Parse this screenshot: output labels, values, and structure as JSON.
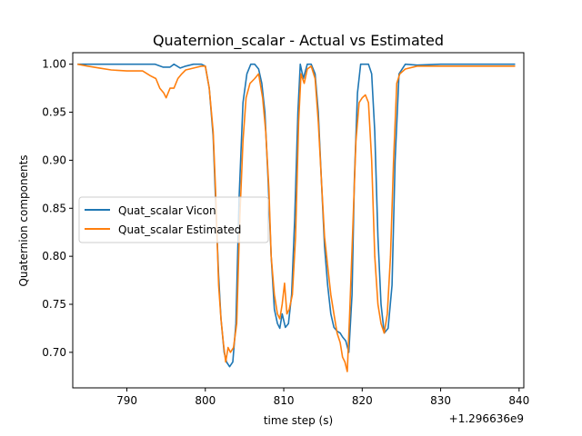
{
  "chart_data": {
    "type": "line",
    "title": "Quaternion_scalar - Actual vs Estimated",
    "xlabel": "time step (s)",
    "ylabel": "Quaternion components",
    "x_offset_label": "+1.296636e9",
    "xlim": [
      783.1,
      840.6
    ],
    "ylim": [
      0.663,
      1.012
    ],
    "x_ticks": [
      "790",
      "800",
      "810",
      "820",
      "830",
      "840"
    ],
    "x_tick_values": [
      790,
      800,
      810,
      820,
      830,
      840
    ],
    "y_ticks": [
      "0.70",
      "0.75",
      "0.80",
      "0.85",
      "0.90",
      "0.95",
      "1.00"
    ],
    "y_tick_values": [
      0.7,
      0.75,
      0.8,
      0.85,
      0.9,
      0.95,
      1.0
    ],
    "legend_position": "center-left",
    "grid": false,
    "series": [
      {
        "name": "Quat_scalar Vicon",
        "color": "#1f77b4",
        "x": [
          783.7,
          790.0,
          792.0,
          793.6,
          794.6,
          795.5,
          796.0,
          796.8,
          797.5,
          798.5,
          799.5,
          800.0,
          800.5,
          801.0,
          801.3,
          801.7,
          802.0,
          802.4,
          802.7,
          803.1,
          803.5,
          803.9,
          804.3,
          804.8,
          805.3,
          805.8,
          806.3,
          806.8,
          807.2,
          807.6,
          808.0,
          808.4,
          808.8,
          809.2,
          809.5,
          809.8,
          810.2,
          810.6,
          811.0,
          811.4,
          811.8,
          812.1,
          812.5,
          813.0,
          813.5,
          814.0,
          814.4,
          814.8,
          815.2,
          815.6,
          816.0,
          816.4,
          816.8,
          817.2,
          817.5,
          817.9,
          818.3,
          818.7,
          819.0,
          819.4,
          819.8,
          820.3,
          820.8,
          821.2,
          821.6,
          822.0,
          822.4,
          822.8,
          823.3,
          823.8,
          824.2,
          824.7,
          825.5,
          827.0,
          830.0,
          835.0,
          839.5
        ],
        "y": [
          1.0,
          1.0,
          1.0,
          1.0,
          0.997,
          0.997,
          1.0,
          0.996,
          0.998,
          1.0,
          1.0,
          0.998,
          0.975,
          0.925,
          0.86,
          0.78,
          0.735,
          0.7,
          0.69,
          0.685,
          0.69,
          0.73,
          0.86,
          0.96,
          0.99,
          1.0,
          1.0,
          0.995,
          0.98,
          0.95,
          0.88,
          0.8,
          0.745,
          0.73,
          0.725,
          0.74,
          0.726,
          0.73,
          0.76,
          0.84,
          0.95,
          1.0,
          0.985,
          1.0,
          1.0,
          0.99,
          0.95,
          0.88,
          0.81,
          0.77,
          0.74,
          0.726,
          0.722,
          0.72,
          0.716,
          0.712,
          0.7,
          0.76,
          0.88,
          0.97,
          1.0,
          1.0,
          1.0,
          0.99,
          0.93,
          0.82,
          0.75,
          0.72,
          0.725,
          0.77,
          0.9,
          0.99,
          1.0,
          0.999,
          1.0,
          1.0,
          1.0
        ]
      },
      {
        "name": "Quat_scalar Estimated",
        "color": "#ff7f0e",
        "x": [
          783.7,
          785.0,
          786.5,
          788.0,
          790.0,
          792.0,
          793.0,
          793.7,
          794.2,
          794.7,
          795.0,
          795.5,
          796.0,
          796.5,
          797.0,
          797.5,
          798.0,
          799.0,
          799.5,
          800.0,
          800.5,
          801.0,
          801.3,
          801.7,
          802.0,
          802.3,
          802.6,
          802.9,
          803.2,
          803.6,
          804.0,
          804.4,
          804.8,
          805.2,
          805.7,
          806.3,
          806.8,
          807.3,
          807.7,
          808.1,
          808.4,
          808.8,
          809.2,
          809.5,
          809.8,
          810.1,
          810.4,
          810.7,
          811.1,
          811.5,
          811.9,
          812.2,
          812.6,
          813.0,
          813.5,
          814.0,
          814.4,
          814.8,
          815.2,
          815.6,
          816.0,
          816.4,
          816.8,
          817.2,
          817.5,
          817.8,
          818.1,
          818.4,
          818.8,
          819.2,
          819.6,
          820.0,
          820.4,
          820.8,
          821.2,
          821.6,
          822.0,
          822.4,
          822.8,
          823.2,
          823.6,
          824.0,
          824.4,
          824.8,
          825.5,
          827.0,
          830.0,
          835.0,
          839.5
        ],
        "y": [
          1.0,
          0.998,
          0.996,
          0.994,
          0.993,
          0.993,
          0.988,
          0.985,
          0.975,
          0.97,
          0.965,
          0.975,
          0.975,
          0.985,
          0.99,
          0.994,
          0.995,
          0.997,
          0.998,
          0.998,
          0.975,
          0.93,
          0.87,
          0.77,
          0.735,
          0.71,
          0.69,
          0.705,
          0.7,
          0.705,
          0.73,
          0.84,
          0.92,
          0.965,
          0.98,
          0.985,
          0.99,
          0.965,
          0.93,
          0.87,
          0.8,
          0.76,
          0.74,
          0.735,
          0.75,
          0.772,
          0.74,
          0.745,
          0.76,
          0.82,
          0.94,
          0.99,
          0.98,
          0.995,
          0.998,
          0.985,
          0.94,
          0.88,
          0.82,
          0.79,
          0.76,
          0.74,
          0.72,
          0.71,
          0.695,
          0.69,
          0.68,
          0.74,
          0.83,
          0.92,
          0.96,
          0.965,
          0.968,
          0.96,
          0.9,
          0.8,
          0.75,
          0.73,
          0.72,
          0.74,
          0.8,
          0.9,
          0.98,
          0.99,
          0.995,
          0.998,
          0.998,
          0.998,
          0.998
        ]
      }
    ]
  }
}
